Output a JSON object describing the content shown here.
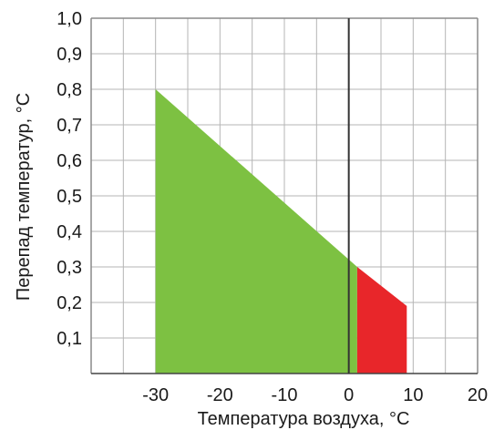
{
  "chart_data": {
    "type": "area",
    "xlabel": "Температура воздуха, °С",
    "ylabel": "Перепад температур, °С",
    "xlim": [
      -40,
      20
    ],
    "ylim": [
      0,
      1.0
    ],
    "x_ticks": [
      -30,
      -20,
      -10,
      0,
      10,
      20
    ],
    "x_tick_labels": [
      "-30",
      "-20",
      "-10",
      "0",
      "10",
      "20"
    ],
    "y_ticks": [
      0.1,
      0.2,
      0.3,
      0.4,
      0.5,
      0.6,
      0.7,
      0.8,
      0.9,
      1.0
    ],
    "y_tick_labels": [
      "0,1",
      "0,2",
      "0,3",
      "0,4",
      "0,5",
      "0,6",
      "0,7",
      "0,8",
      "0,9",
      "1,0"
    ],
    "grid": true,
    "x_grid_step": 5,
    "y_grid_step": 0.1,
    "series": [
      {
        "color": "#7dc142",
        "points": [
          [
            -30,
            0.8
          ],
          [
            1.3,
            0.3
          ],
          [
            1.3,
            0
          ],
          [
            -30,
            0
          ]
        ]
      },
      {
        "color": "#e8262a",
        "points": [
          [
            1.3,
            0.3
          ],
          [
            9,
            0.19
          ],
          [
            9,
            0
          ],
          [
            1.3,
            0
          ]
        ]
      }
    ],
    "reference_line_x": 0
  }
}
